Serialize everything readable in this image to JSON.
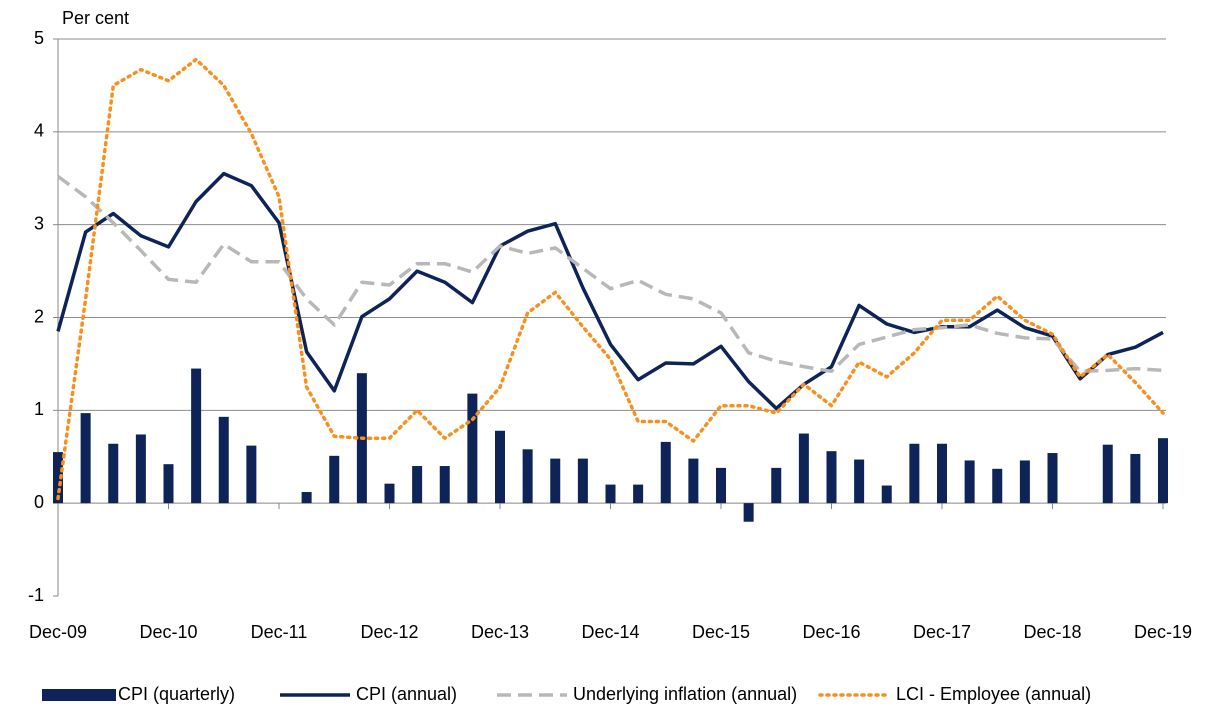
{
  "chart_data": {
    "type": "combo",
    "y_label": "Per cent",
    "categories": [
      "Dec-09",
      null,
      null,
      null,
      "Dec-10",
      null,
      null,
      null,
      "Dec-11",
      null,
      null,
      null,
      "Dec-12",
      null,
      null,
      null,
      "Dec-13",
      null,
      null,
      null,
      "Dec-14",
      null,
      null,
      null,
      "Dec-15",
      null,
      null,
      null,
      "Dec-16",
      null,
      null,
      null,
      "Dec-17",
      null,
      null,
      null,
      "Dec-18",
      null,
      null,
      null,
      "Dec-19"
    ],
    "ylim": [
      -1,
      5
    ],
    "yticks": [
      -1,
      0,
      1,
      2,
      3,
      4,
      5
    ],
    "grid": true,
    "legend": "bottom",
    "series": [
      {
        "name": "CPI (quarterly)",
        "type": "bar",
        "color": "#0e2357",
        "values": [
          0.55,
          0.97,
          0.64,
          0.74,
          0.42,
          1.45,
          0.93,
          0.62,
          null,
          0.12,
          0.51,
          1.4,
          0.21,
          0.4,
          0.4,
          1.18,
          0.78,
          0.58,
          0.48,
          0.48,
          0.2,
          0.2,
          0.66,
          0.48,
          0.38,
          -0.2,
          0.38,
          0.75,
          0.56,
          0.47,
          0.19,
          0.64,
          0.64,
          0.46,
          0.37,
          0.46,
          0.54,
          null,
          0.63,
          0.53,
          0.7
        ]
      },
      {
        "name": "CPI (annual)",
        "type": "line",
        "dash": "solid",
        "color": "#0e2357",
        "values": [
          1.85,
          2.92,
          3.12,
          2.88,
          2.76,
          3.25,
          3.55,
          3.42,
          3.02,
          1.63,
          1.21,
          2.01,
          2.2,
          2.5,
          2.38,
          2.16,
          2.77,
          2.93,
          3.01,
          2.32,
          1.71,
          1.33,
          1.51,
          1.5,
          1.69,
          1.31,
          1.02,
          1.28,
          1.47,
          2.13,
          1.93,
          1.84,
          1.9,
          1.9,
          2.08,
          1.89,
          1.8,
          1.34,
          1.6,
          1.68,
          1.84
        ]
      },
      {
        "name": "Underlying inflation (annual)",
        "type": "line",
        "dash": "dashed",
        "color": "#b8b8b8",
        "values": [
          3.52,
          3.3,
          3.02,
          2.72,
          2.41,
          2.38,
          2.79,
          2.6,
          2.6,
          2.2,
          1.92,
          2.38,
          2.35,
          2.58,
          2.58,
          2.49,
          2.77,
          2.69,
          2.75,
          2.53,
          2.31,
          2.4,
          2.25,
          2.2,
          2.05,
          1.62,
          1.53,
          1.47,
          1.42,
          1.71,
          1.79,
          1.87,
          1.89,
          1.92,
          1.83,
          1.78,
          1.77,
          1.42,
          1.43,
          1.45,
          1.43
        ]
      },
      {
        "name": "LCI - Employee (annual)",
        "type": "line",
        "dash": "dotted",
        "color": "#f7901e",
        "values": [
          0.05,
          2.2,
          4.5,
          4.67,
          4.55,
          4.78,
          4.5,
          3.98,
          3.3,
          1.25,
          0.72,
          0.7,
          0.7,
          1.0,
          0.7,
          0.9,
          1.25,
          2.05,
          2.27,
          1.9,
          1.55,
          0.88,
          0.88,
          0.67,
          1.05,
          1.05,
          0.97,
          1.28,
          1.05,
          1.52,
          1.36,
          1.62,
          1.97,
          1.97,
          2.23,
          1.97,
          1.82,
          1.36,
          1.6,
          1.3,
          0.97
        ]
      }
    ]
  }
}
